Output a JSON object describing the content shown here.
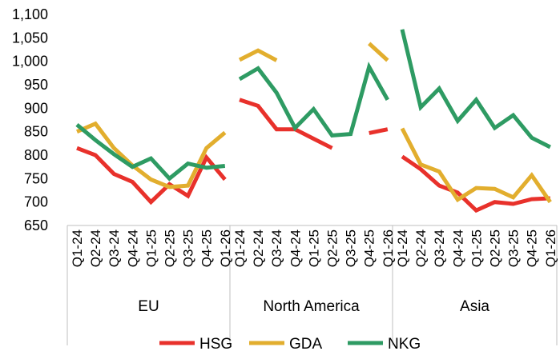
{
  "chart_data": {
    "type": "line",
    "title": "",
    "xlabel": "",
    "ylabel": "",
    "ylim": [
      650,
      1100
    ],
    "yticks": [
      650,
      700,
      750,
      800,
      850,
      900,
      950,
      1000,
      1050,
      1100
    ],
    "ytick_labels": [
      "650",
      "700",
      "750",
      "800",
      "850",
      "900",
      "950",
      "1,000",
      "1,050",
      "1,100"
    ],
    "quarters": [
      "Q1-24",
      "Q2-24",
      "Q3-24",
      "Q4-24",
      "Q1-25",
      "Q2-25",
      "Q3-25",
      "Q4-25",
      "Q1-26"
    ],
    "groups": [
      {
        "label": "EU",
        "quarters": [
          "Q1-24",
          "Q2-24",
          "Q3-24",
          "Q4-24",
          "Q1-25",
          "Q2-25",
          "Q3-25",
          "Q4-25",
          "Q1-26"
        ]
      },
      {
        "label": "North America",
        "quarters": [
          "Q1-24",
          "Q2-24",
          "Q3-24",
          "Q4-24",
          "Q1-25",
          "Q2-25",
          "Q3-25",
          "Q4-25",
          "Q1-26"
        ]
      },
      {
        "label": "Asia",
        "quarters": [
          "Q1-24",
          "Q2-24",
          "Q3-24",
          "Q4-24",
          "Q1-25",
          "Q2-25",
          "Q3-25",
          "Q4-25",
          "Q1-26"
        ]
      }
    ],
    "series": [
      {
        "name": "HSG",
        "color": "#e8312b",
        "values": [
          [
            815,
            800,
            760,
            743,
            700,
            738,
            713,
            795,
            748
          ],
          [
            918,
            905,
            855,
            855,
            835,
            815,
            null,
            847,
            855
          ],
          [
            797,
            770,
            735,
            720,
            682,
            700,
            696,
            706,
            708
          ]
        ]
      },
      {
        "name": "GDA",
        "color": "#e2ae2e",
        "values": [
          [
            850,
            867,
            815,
            778,
            748,
            732,
            735,
            815,
            848
          ],
          [
            1003,
            1023,
            1002,
            null,
            null,
            null,
            null,
            1038,
            1002
          ],
          [
            857,
            780,
            765,
            705,
            730,
            728,
            710,
            757,
            700
          ]
        ]
      },
      {
        "name": "NKG",
        "color": "#2e9b63",
        "values": [
          [
            865,
            832,
            802,
            775,
            793,
            750,
            782,
            773,
            777
          ],
          [
            962,
            985,
            933,
            858,
            898,
            842,
            845,
            988,
            918
          ],
          [
            1068,
            902,
            942,
            873,
            918,
            858,
            885,
            837,
            817
          ]
        ]
      }
    ],
    "legend": {
      "position": "bottom",
      "items": [
        "HSG",
        "GDA",
        "NKG"
      ]
    },
    "grid": false
  }
}
